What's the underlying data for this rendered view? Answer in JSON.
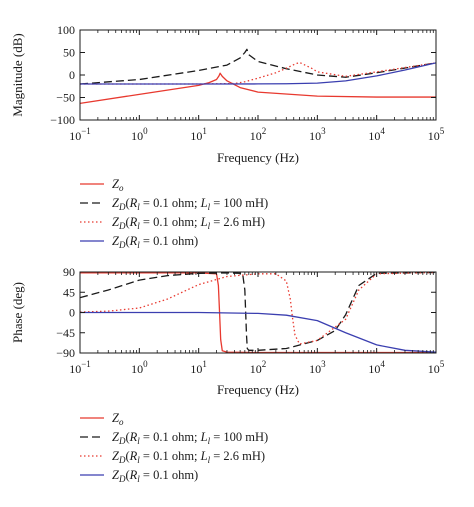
{
  "chart_data": [
    {
      "type": "line",
      "xscale": "log",
      "xlim": [
        0.1,
        100000
      ],
      "ylim": [
        -100,
        100
      ],
      "xlabel": "Frequency (Hz)",
      "ylabel": "Magnitude (dB)",
      "xticks": [
        0.1,
        1,
        10,
        100,
        1000,
        10000,
        100000
      ],
      "xtick_labels": [
        {
          "base": "10",
          "exp": "−1"
        },
        {
          "base": "10",
          "exp": "0"
        },
        {
          "base": "10",
          "exp": "1"
        },
        {
          "base": "10",
          "exp": "2"
        },
        {
          "base": "10",
          "exp": "3"
        },
        {
          "base": "10",
          "exp": "4"
        },
        {
          "base": "10",
          "exp": "5"
        }
      ],
      "yticks": [
        -100,
        -50,
        0,
        50,
        100
      ],
      "ytick_labels": [
        "−100",
        "−50",
        "0",
        "50",
        "100"
      ],
      "grid": false,
      "series": [
        {
          "key": "zo",
          "color": "#e8392f",
          "dash": "solid",
          "x": [
            0.1,
            1,
            10,
            15,
            20,
            22,
            23,
            25,
            30,
            50,
            100,
            1000,
            10000,
            100000
          ],
          "y": [
            -63,
            -43,
            -23,
            -17,
            -10,
            -2,
            4,
            -3,
            -13,
            -28,
            -38,
            -47,
            -49,
            -49
          ]
        },
        {
          "key": "zd1",
          "color": "#1a1a1a",
          "dash": "8,4",
          "x": [
            0.1,
            1,
            10,
            30,
            50,
            60,
            65,
            70,
            100,
            300,
            1000,
            3000,
            10000,
            100000
          ],
          "y": [
            -20,
            -10,
            10,
            22,
            38,
            50,
            57,
            45,
            30,
            14,
            0,
            -5,
            5,
            27
          ]
        },
        {
          "key": "zd2",
          "color": "#e8392f",
          "dash": "1.5,2.5",
          "x": [
            0.1,
            1,
            10,
            40,
            60,
            100,
            200,
            300,
            400,
            500,
            800,
            1000,
            3000,
            10000,
            100000
          ],
          "y": [
            -20,
            -20,
            -20,
            -19,
            -15,
            -7,
            5,
            15,
            23,
            28,
            15,
            7,
            -3,
            7,
            27
          ]
        },
        {
          "key": "zd3",
          "color": "#3b3fb0",
          "dash": "solid",
          "x": [
            0.1,
            1,
            10,
            100,
            300,
            1000,
            3000,
            10000,
            30000,
            100000
          ],
          "y": [
            -20,
            -20,
            -20,
            -19.8,
            -19.5,
            -18,
            -13,
            -2,
            11,
            27
          ]
        }
      ]
    },
    {
      "type": "line",
      "xscale": "log",
      "xlim": [
        0.1,
        100000
      ],
      "ylim": [
        -90,
        90
      ],
      "xlabel": "Frequency (Hz)",
      "ylabel": "Phase (deg)",
      "xticks": [
        0.1,
        1,
        10,
        100,
        1000,
        10000,
        100000
      ],
      "xtick_labels": [
        {
          "base": "10",
          "exp": "−1"
        },
        {
          "base": "10",
          "exp": "0"
        },
        {
          "base": "10",
          "exp": "1"
        },
        {
          "base": "10",
          "exp": "2"
        },
        {
          "base": "10",
          "exp": "3"
        },
        {
          "base": "10",
          "exp": "4"
        },
        {
          "base": "10",
          "exp": "5"
        }
      ],
      "yticks": [
        -90,
        -45,
        0,
        45,
        90
      ],
      "ytick_labels": [
        "−90",
        "−45",
        "0",
        "45",
        "90"
      ],
      "grid": false,
      "series": [
        {
          "key": "zo",
          "color": "#e8392f",
          "dash": "solid",
          "x": [
            0.1,
            1,
            10,
            20,
            21.5,
            22.5,
            23.5,
            25,
            30,
            100,
            1000,
            10000,
            100000
          ],
          "y": [
            88,
            88,
            88,
            86,
            60,
            0,
            -60,
            -85,
            -88,
            -89,
            -89,
            -89,
            -89
          ]
        },
        {
          "key": "zd1",
          "color": "#1a1a1a",
          "dash": "8,4",
          "x": [
            0.1,
            0.3,
            1,
            3,
            10,
            30,
            55,
            60,
            62,
            64,
            66,
            70,
            100,
            300,
            1000,
            2000,
            3000,
            5000,
            10000,
            100000
          ],
          "y": [
            33,
            50,
            72,
            82,
            87,
            88,
            87,
            50,
            0,
            -50,
            -80,
            -84,
            -84,
            -80,
            -62,
            -40,
            -5,
            60,
            87,
            89
          ]
        },
        {
          "key": "zd2",
          "color": "#e8392f",
          "dash": "1.5,2.5",
          "x": [
            0.1,
            0.3,
            1,
            3,
            10,
            30,
            100,
            200,
            300,
            350,
            380,
            420,
            500,
            1000,
            3000,
            5000,
            10000,
            100000
          ],
          "y": [
            1,
            3,
            10,
            30,
            62,
            80,
            86,
            86,
            70,
            30,
            -10,
            -50,
            -70,
            -62,
            -15,
            50,
            86,
            89
          ]
        },
        {
          "key": "zd3",
          "color": "#3b3fb0",
          "dash": "solid",
          "x": [
            0.1,
            1,
            10,
            100,
            300,
            1000,
            3000,
            10000,
            30000,
            100000
          ],
          "y": [
            0,
            0,
            0,
            -2,
            -6,
            -18,
            -45,
            -72,
            -84,
            -88
          ]
        }
      ]
    }
  ],
  "legend_items": {
    "zo": {
      "base": "Z",
      "sub": "o",
      "rest": "",
      "sub2": "",
      "rest2": ""
    },
    "zd1": {
      "base": "Z",
      "sub": "D",
      "rest": "(R",
      "sub2": "l",
      "rest2": " = 0.1 ohm; L",
      "sub3": "l",
      "rest3": " = 100 mH)"
    },
    "zd2": {
      "base": "Z",
      "sub": "D",
      "rest": "(R",
      "sub2": "l",
      "rest2": " = 0.1 ohm; L",
      "sub3": "l",
      "rest3": " = 2.6 mH)"
    },
    "zd3": {
      "base": "Z",
      "sub": "D",
      "rest": "(R",
      "sub2": "l",
      "rest2": " = 0.1 ohm)",
      "sub3": "",
      "rest3": ""
    }
  }
}
